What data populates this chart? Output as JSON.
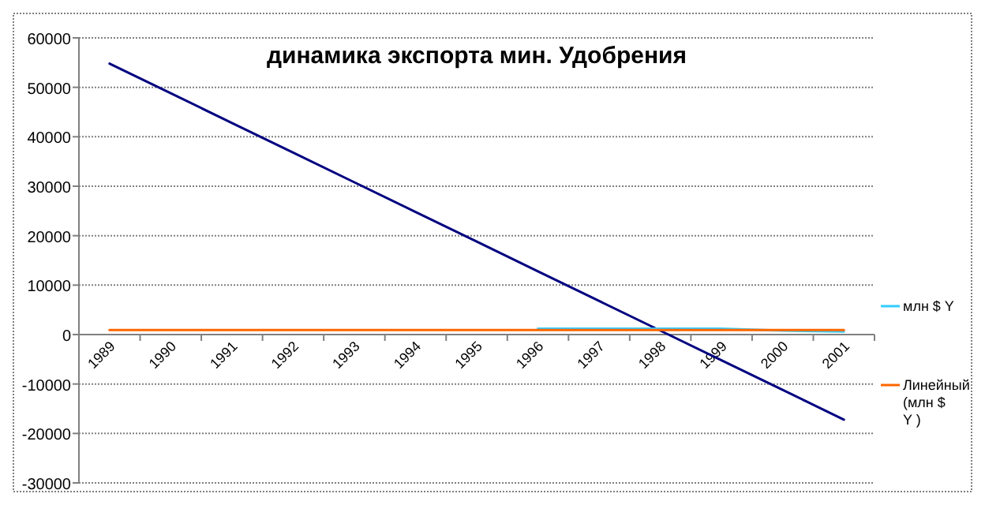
{
  "chart_data": {
    "type": "line",
    "title": "динамика экспорта мин. Удобрения",
    "categories": [
      "1989",
      "1990",
      "1991",
      "1992",
      "1993",
      "1994",
      "1995",
      "1996",
      "1997",
      "1998",
      "1999",
      "2000",
      "2001"
    ],
    "series": [
      {
        "color": "#000080",
        "values": [
          54800,
          48800,
          42800,
          36800,
          30800,
          24800,
          18800,
          12800,
          6800,
          800,
          -5200,
          -11200,
          -17200
        ]
      },
      {
        "name": "млн $ Y",
        "color": "#33ccff",
        "values": [
          null,
          null,
          null,
          null,
          null,
          null,
          null,
          1200,
          1200,
          1200,
          1200,
          800,
          600
        ]
      },
      {
        "name": "Линейный (млн $ Y )",
        "color": "#ff6600",
        "values": [
          900,
          900,
          900,
          900,
          900,
          900,
          900,
          900,
          900,
          900,
          900,
          900,
          900
        ]
      }
    ],
    "ylim": [
      -30000,
      60000
    ],
    "yticks": [
      -30000,
      -20000,
      -10000,
      0,
      10000,
      20000,
      30000,
      40000,
      50000,
      60000
    ],
    "grid": "y",
    "legend": "right",
    "marker": "none",
    "line_style": "solid"
  }
}
